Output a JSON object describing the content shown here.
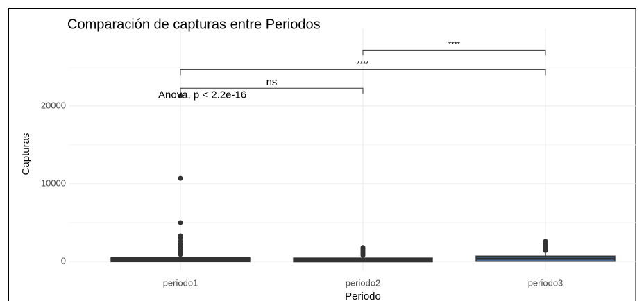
{
  "chart_data": {
    "type": "box",
    "title": "Comparación de capturas entre Periodos",
    "x_label": "Periodo",
    "y_label": "Capturas",
    "categories": [
      "periodo1",
      "periodo2",
      "periodo3"
    ],
    "series": [
      {
        "name": "periodo1",
        "color": "#333333",
        "min": 0,
        "q1": 100,
        "median": 250,
        "q3": 350,
        "max": 700,
        "outliers": [
          900,
          1200,
          1500,
          1800,
          2200,
          2600,
          3000,
          3300,
          5000,
          10700,
          21300
        ]
      },
      {
        "name": "periodo2",
        "color": "#333333",
        "min": 0,
        "q1": 80,
        "median": 200,
        "q3": 300,
        "max": 600,
        "outliers": [
          800,
          1000,
          1200,
          1400,
          1600,
          1800
        ]
      },
      {
        "name": "periodo3",
        "color": "#4a6a9a",
        "min": 0,
        "q1": 150,
        "median": 350,
        "q3": 550,
        "max": 1100,
        "outliers": [
          1400,
          1600,
          1800,
          2000,
          2200,
          2400,
          2600
        ]
      }
    ],
    "ylim": [
      -1200,
      30000
    ],
    "yticks": [
      0,
      10000,
      20000
    ],
    "minor_yticks": [
      5000,
      15000,
      25000
    ],
    "grid": true,
    "annotation": {
      "label": "Anova, p < 2.2e-16",
      "y": 21400
    },
    "comparisons": [
      {
        "from": "periodo1",
        "to": "periodo2",
        "y": 22300,
        "label": "ns"
      },
      {
        "from": "periodo1",
        "to": "periodo3",
        "y": 24700,
        "label": "****"
      },
      {
        "from": "periodo2",
        "to": "periodo3",
        "y": 27200,
        "label": "****"
      }
    ]
  }
}
